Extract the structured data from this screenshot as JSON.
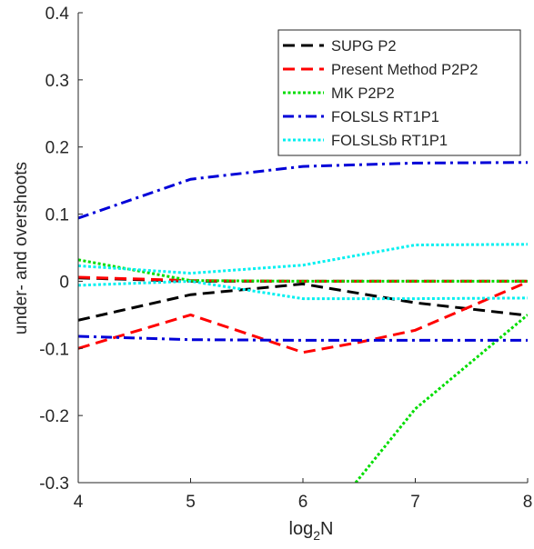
{
  "chart_data": {
    "type": "line",
    "title": "",
    "xlabel": "log",
    "xlabel_subscript": "2",
    "xlabel_suffix": "N",
    "ylabel": "under- and overshoots",
    "xlim": [
      4,
      8
    ],
    "ylim": [
      -0.3,
      0.4
    ],
    "xticks": [
      4,
      5,
      6,
      7,
      8
    ],
    "xtick_labels": [
      "4",
      "5",
      "6",
      "7",
      "8"
    ],
    "yticks": [
      -0.3,
      -0.2,
      -0.1,
      0,
      0.1,
      0.2,
      0.3,
      0.4
    ],
    "ytick_labels": [
      "-0.3",
      "-0.2",
      "-0.1",
      "0",
      "0.1",
      "0.2",
      "0.3",
      "0.4"
    ],
    "grid": false,
    "legend_position": "top-right",
    "series": [
      {
        "name": "SUPG P2",
        "color": "#000000",
        "dash": "dashed",
        "lines": [
          {
            "x": [
              4,
              5,
              6,
              7,
              8
            ],
            "y": [
              0.005,
              0.0,
              0.0,
              0.0,
              0.0
            ]
          },
          {
            "x": [
              4,
              5,
              6,
              7,
              8
            ],
            "y": [
              -0.058,
              -0.02,
              -0.004,
              -0.032,
              -0.051
            ]
          }
        ]
      },
      {
        "name": "Present Method P2P2",
        "color": "#ff0000",
        "dash": "dashed",
        "lines": [
          {
            "x": [
              4,
              5,
              6,
              7,
              8
            ],
            "y": [
              0.006,
              0.001,
              0.0,
              0.0,
              0.0
            ]
          },
          {
            "x": [
              4,
              5,
              6,
              6.5,
              7,
              8
            ],
            "y": [
              -0.1,
              -0.05,
              -0.106,
              -0.091,
              -0.073,
              -0.001
            ]
          }
        ]
      },
      {
        "name": "MK P2P2",
        "color": "#00dd00",
        "dash": "dotted",
        "lines": [
          {
            "x": [
              4,
              5,
              6,
              7,
              8
            ],
            "y": [
              0.032,
              0.001,
              0.0,
              0.0,
              0.0
            ]
          },
          {
            "x": [
              6.47,
              7,
              8
            ],
            "y": [
              -0.3,
              -0.19,
              -0.05
            ]
          }
        ]
      },
      {
        "name": "FOLSLS RT1P1",
        "color": "#0000d8",
        "dash": "dashdot",
        "lines": [
          {
            "x": [
              4,
              5,
              6,
              7,
              8
            ],
            "y": [
              0.094,
              0.152,
              0.171,
              0.176,
              0.177
            ]
          },
          {
            "x": [
              4,
              5,
              6,
              7,
              8
            ],
            "y": [
              -0.082,
              -0.087,
              -0.088,
              -0.088,
              -0.088
            ]
          }
        ]
      },
      {
        "name": "FOLSLSb RT1P1",
        "color": "#00f0f0",
        "dash": "dotted",
        "lines": [
          {
            "x": [
              4,
              5,
              6,
              7,
              8
            ],
            "y": [
              0.023,
              0.012,
              0.024,
              0.054,
              0.055
            ]
          },
          {
            "x": [
              4,
              5,
              6,
              7,
              8
            ],
            "y": [
              -0.006,
              0.0,
              -0.026,
              -0.026,
              -0.025
            ]
          }
        ]
      }
    ]
  }
}
